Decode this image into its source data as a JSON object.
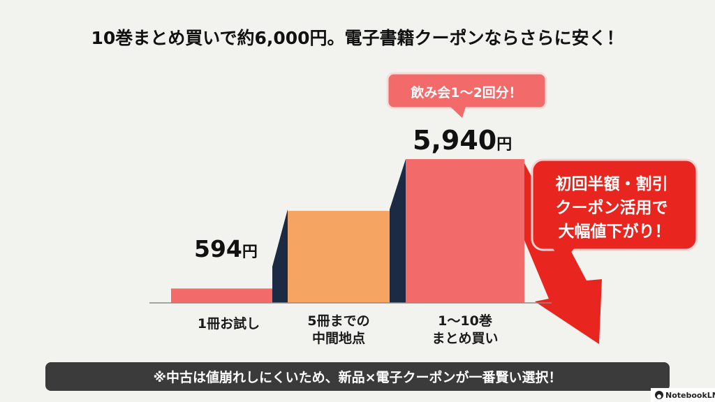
{
  "chart_data": {
    "type": "bar",
    "title": "10巻まとめ買いで約6,000円。電子書籍クーポンならさらに安く！",
    "categories": [
      [
        "1冊お試し"
      ],
      [
        "5冊までの",
        "中間地点"
      ],
      [
        "1〜10巻",
        "まとめ買い"
      ]
    ],
    "values": [
      594,
      null,
      5940
    ],
    "value_labels": [
      "594",
      "",
      "5,940"
    ],
    "value_unit": "円",
    "bar_colors": [
      "#f26a6a",
      "#f5a462",
      "#f26a6a"
    ],
    "middle_bar_relative_height": 0.64,
    "bubble_text": "飲み会1〜2回分！",
    "callout_lines": [
      "初回半額・割引",
      "クーポン活用で",
      "大幅値下がり！"
    ],
    "note": "※中古は値崩れしにくいため、新品×電子クーポンが一番賢い選択！",
    "grid": false,
    "legend": "none"
  },
  "brand": {
    "label": "NotebookLM",
    "icon": "notebooklm-icon"
  },
  "colors": {
    "background": "#f2f2ee",
    "red_bar": "#f26a6a",
    "orange_bar": "#f5a462",
    "connector": "#1c2a44",
    "arrow_red": "#e8261f",
    "note_bg": "#3b3b3b"
  }
}
